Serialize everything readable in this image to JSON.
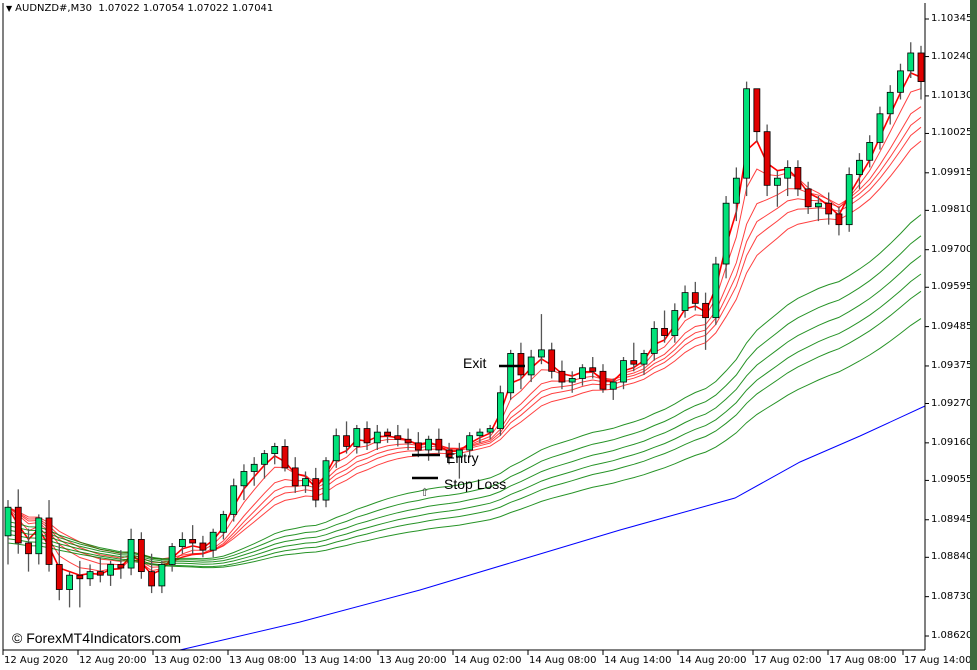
{
  "header": {
    "dropdown_icon": "triangle-down-icon",
    "symbol": "AUDNZD#,M30",
    "ohlc": "1.07022 1.07054 1.07022 1.07041"
  },
  "watermark": "© ForexMT4Indicators.com",
  "annotations": {
    "exit": "Exit",
    "entry": "Entry",
    "stop_loss": "Stop Loss",
    "arrow": "⇧"
  },
  "colors": {
    "bull_candle": "#00e27a",
    "bear_candle": "#e00000",
    "wick": "#000000",
    "fast_ma": "#ff0000",
    "slow_ma": "#008000",
    "long_ma": "#0000ff",
    "axis": "#000000",
    "right_strip": "#3e6b3e"
  },
  "chart_data": {
    "type": "candlestick",
    "title": "AUDNZD#,M30",
    "ohlc_header": [
      1.07022,
      1.07054,
      1.07022,
      1.07041
    ],
    "y_ticks": [
      "1.10345",
      "1.10240",
      "1.10130",
      "1.10025",
      "1.09915",
      "1.09810",
      "1.09700",
      "1.09595",
      "1.09485",
      "1.09375",
      "1.09270",
      "1.09160",
      "1.09055",
      "1.08945",
      "1.08840",
      "1.08730",
      "1.08620"
    ],
    "x_ticks": [
      "12 Aug 2020",
      "12 Aug 20:00",
      "13 Aug 02:00",
      "13 Aug 08:00",
      "13 Aug 14:00",
      "13 Aug 20:00",
      "14 Aug 02:00",
      "14 Aug 08:00",
      "14 Aug 14:00",
      "14 Aug 20:00",
      "17 Aug 02:00",
      "17 Aug 08:00",
      "17 Aug 14:00"
    ],
    "ylim": [
      1.0858,
      1.104
    ],
    "grid": false,
    "indicators": [
      {
        "name": "Fast MA ribbon",
        "color": "#ff0000",
        "count": 6
      },
      {
        "name": "Slow MA ribbon",
        "color": "#008000",
        "count": 6
      },
      {
        "name": "Long-term MA",
        "color": "#0000ff",
        "count": 1
      }
    ],
    "trade_markers": [
      {
        "label": "Entry",
        "price": 1.0914
      },
      {
        "label": "Stop Loss",
        "price": 1.0906
      },
      {
        "label": "Exit",
        "price": 1.0938
      }
    ],
    "candles": [
      [
        1.089,
        1.09,
        1.0882,
        1.0898
      ],
      [
        1.0898,
        1.0903,
        1.0885,
        1.0888
      ],
      [
        1.0888,
        1.0892,
        1.088,
        1.0885
      ],
      [
        1.0885,
        1.0896,
        1.0882,
        1.0895
      ],
      [
        1.0895,
        1.09,
        1.088,
        1.0882
      ],
      [
        1.0882,
        1.0888,
        1.0872,
        1.0875
      ],
      [
        1.0875,
        1.088,
        1.087,
        1.0879
      ],
      [
        1.0879,
        1.0883,
        1.087,
        1.0878
      ],
      [
        1.0878,
        1.0882,
        1.0876,
        1.088
      ],
      [
        1.088,
        1.0884,
        1.0877,
        1.0879
      ],
      [
        1.0879,
        1.0883,
        1.0876,
        1.0882
      ],
      [
        1.0882,
        1.0886,
        1.0878,
        1.0881
      ],
      [
        1.0881,
        1.0892,
        1.0879,
        1.0889
      ],
      [
        1.0889,
        1.0891,
        1.0878,
        1.088
      ],
      [
        1.088,
        1.0885,
        1.0874,
        1.0876
      ],
      [
        1.0876,
        1.0883,
        1.0874,
        1.0882
      ],
      [
        1.0882,
        1.0888,
        1.088,
        1.0887
      ],
      [
        1.0887,
        1.0891,
        1.0885,
        1.0889
      ],
      [
        1.0889,
        1.0893,
        1.0885,
        1.0888
      ],
      [
        1.0888,
        1.089,
        1.0884,
        1.0886
      ],
      [
        1.0886,
        1.0892,
        1.0884,
        1.0891
      ],
      [
        1.0891,
        1.0897,
        1.0889,
        1.0896
      ],
      [
        1.0896,
        1.0906,
        1.0894,
        1.0904
      ],
      [
        1.0904,
        1.091,
        1.09,
        1.0908
      ],
      [
        1.0908,
        1.0912,
        1.0904,
        1.091
      ],
      [
        1.091,
        1.0914,
        1.0906,
        1.0913
      ],
      [
        1.0913,
        1.0916,
        1.091,
        1.0915
      ],
      [
        1.0915,
        1.0917,
        1.0908,
        1.0909
      ],
      [
        1.0909,
        1.0912,
        1.0902,
        1.0904
      ],
      [
        1.0904,
        1.0908,
        1.0902,
        1.0906
      ],
      [
        1.0906,
        1.0909,
        1.0898,
        1.09
      ],
      [
        1.09,
        1.0912,
        1.0898,
        1.0911
      ],
      [
        1.0911,
        1.092,
        1.0909,
        1.0918
      ],
      [
        1.0918,
        1.0922,
        1.0913,
        1.0915
      ],
      [
        1.0915,
        1.0921,
        1.0913,
        1.092
      ],
      [
        1.092,
        1.0922,
        1.0914,
        1.0916
      ],
      [
        1.0916,
        1.0921,
        1.0914,
        1.0919
      ],
      [
        1.0919,
        1.092,
        1.0916,
        1.0918
      ],
      [
        1.0918,
        1.0921,
        1.0915,
        1.0917
      ],
      [
        1.0917,
        1.092,
        1.0914,
        1.0916
      ],
      [
        1.0916,
        1.0919,
        1.0912,
        1.0914
      ],
      [
        1.0914,
        1.0918,
        1.0911,
        1.0917
      ],
      [
        1.0917,
        1.092,
        1.0913,
        1.0914
      ],
      [
        1.0914,
        1.0916,
        1.091,
        1.0912
      ],
      [
        1.0912,
        1.0916,
        1.0906,
        1.0914
      ],
      [
        1.0914,
        1.0919,
        1.0912,
        1.0918
      ],
      [
        1.0918,
        1.092,
        1.0916,
        1.0919
      ],
      [
        1.0919,
        1.0921,
        1.0917,
        1.092
      ],
      [
        1.092,
        1.0932,
        1.0918,
        1.093
      ],
      [
        1.093,
        1.0942,
        1.0928,
        1.0941
      ],
      [
        1.0941,
        1.0944,
        1.0931,
        1.0935
      ],
      [
        1.0935,
        1.0942,
        1.0933,
        1.094
      ],
      [
        1.094,
        1.0952,
        1.0938,
        1.0942
      ],
      [
        1.0942,
        1.0944,
        1.0934,
        1.0936
      ],
      [
        1.0936,
        1.0939,
        1.0931,
        1.0933
      ],
      [
        1.0933,
        1.0936,
        1.093,
        1.0934
      ],
      [
        1.0934,
        1.0938,
        1.0932,
        1.0937
      ],
      [
        1.0937,
        1.094,
        1.0934,
        1.0936
      ],
      [
        1.0936,
        1.0938,
        1.093,
        1.0931
      ],
      [
        1.0931,
        1.0934,
        1.0928,
        1.0933
      ],
      [
        1.0933,
        1.094,
        1.0931,
        1.0939
      ],
      [
        1.0939,
        1.0944,
        1.0936,
        1.0938
      ],
      [
        1.0938,
        1.0942,
        1.0935,
        1.0941
      ],
      [
        1.0941,
        1.095,
        1.0939,
        1.0948
      ],
      [
        1.0948,
        1.0953,
        1.0944,
        1.0946
      ],
      [
        1.0946,
        1.0955,
        1.0944,
        1.0953
      ],
      [
        1.0953,
        1.096,
        1.0951,
        1.0958
      ],
      [
        1.0958,
        1.0961,
        1.0953,
        1.0955
      ],
      [
        1.0955,
        1.0958,
        1.0942,
        1.0951
      ],
      [
        1.0951,
        1.0968,
        1.0949,
        1.0966
      ],
      [
        1.0966,
        1.0985,
        1.0962,
        1.0983
      ],
      [
        1.0983,
        1.0993,
        1.0978,
        1.099
      ],
      [
        1.099,
        1.1017,
        1.0985,
        1.1015
      ],
      [
        1.1015,
        1.1013,
        1.1,
        1.1003
      ],
      [
        1.1003,
        1.1005,
        1.0985,
        1.0988
      ],
      [
        1.0988,
        1.0992,
        1.0982,
        1.099
      ],
      [
        1.099,
        1.0995,
        1.0985,
        1.0993
      ],
      [
        1.0993,
        1.0995,
        1.0985,
        1.0987
      ],
      [
        1.0987,
        1.0989,
        1.098,
        1.0982
      ],
      [
        1.0982,
        1.0985,
        1.0978,
        1.0983
      ],
      [
        1.0983,
        1.0986,
        1.0977,
        1.098
      ],
      [
        1.098,
        1.0982,
        1.0974,
        1.0977
      ],
      [
        1.0977,
        1.0993,
        1.0975,
        1.0991
      ],
      [
        1.0991,
        1.0997,
        1.0987,
        1.0995
      ],
      [
        1.0995,
        1.1002,
        1.0993,
        1.1
      ],
      [
        1.1,
        1.101,
        1.0998,
        1.1008
      ],
      [
        1.1008,
        1.1016,
        1.1005,
        1.1014
      ],
      [
        1.1014,
        1.1022,
        1.1012,
        1.102
      ],
      [
        1.102,
        1.1028,
        1.1018,
        1.1025
      ],
      [
        1.1025,
        1.1027,
        1.1012,
        1.1017
      ]
    ]
  }
}
